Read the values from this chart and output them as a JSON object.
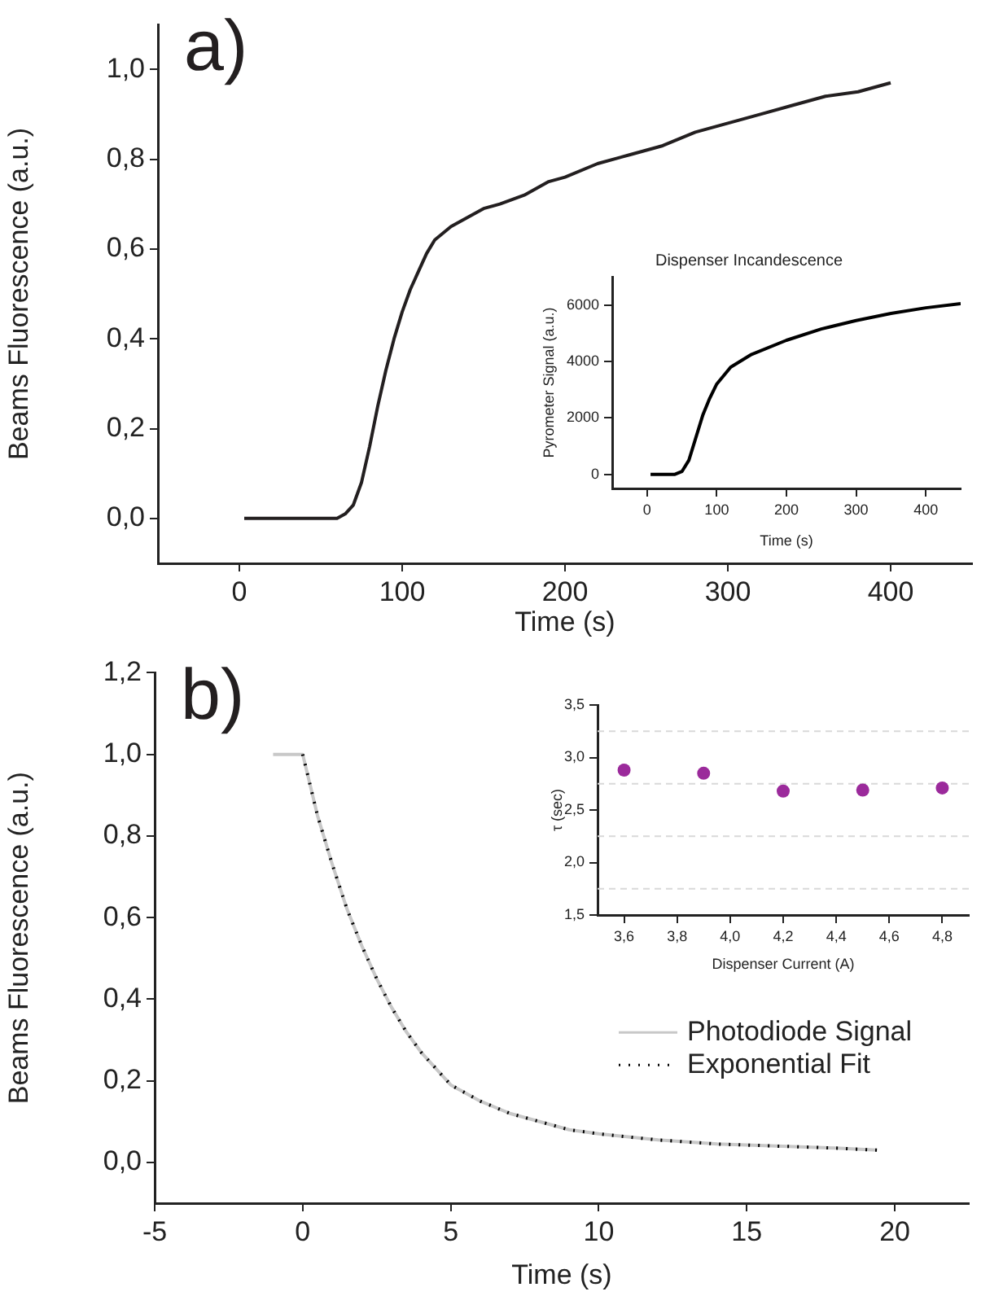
{
  "chart_data": [
    {
      "type": "line",
      "xlabel": "Time (s)",
      "ylabel": "Beams Fluorescence (a.u.)",
      "annotations": [
        "a)"
      ],
      "xlim": [
        -50,
        450
      ],
      "ylim": [
        -0.1,
        1.1
      ],
      "xticks": [
        0,
        100,
        200,
        300,
        400
      ],
      "yticks": [
        {
          "value": 0,
          "label": "0,0"
        },
        {
          "value": 0.2,
          "label": "0,2"
        },
        {
          "value": 0.4,
          "label": "0,4"
        },
        {
          "value": 0.6,
          "label": "0,6"
        },
        {
          "value": 0.8,
          "label": "0,8"
        },
        {
          "value": 1,
          "label": "1,0"
        }
      ],
      "grid": false,
      "legend": false,
      "marker": "none",
      "line_style": "solid",
      "series": [
        {
          "color": "#231f20",
          "x": [
            3,
            20,
            40,
            60,
            65,
            70,
            75,
            80,
            85,
            90,
            95,
            100,
            105,
            110,
            115,
            120,
            130,
            140,
            150,
            160,
            175,
            190,
            200,
            220,
            240,
            260,
            280,
            300,
            320,
            340,
            360,
            380,
            400
          ],
          "values": [
            0,
            0,
            0,
            0,
            0.01,
            0.03,
            0.08,
            0.16,
            0.25,
            0.33,
            0.4,
            0.46,
            0.51,
            0.55,
            0.59,
            0.62,
            0.65,
            0.67,
            0.69,
            0.7,
            0.72,
            0.75,
            0.76,
            0.79,
            0.81,
            0.83,
            0.86,
            0.88,
            0.9,
            0.92,
            0.94,
            0.95,
            0.97
          ]
        }
      ]
    },
    {
      "type": "line",
      "title": "Dispenser Incandescence",
      "xlabel": "Time (s)",
      "ylabel": "Pyrometer Signal (a.u.)",
      "xlim": [
        -50,
        450
      ],
      "ylim": [
        -500,
        7000
      ],
      "xticks": [
        0,
        100,
        200,
        300,
        400
      ],
      "yticks": [
        0,
        2000,
        4000,
        6000
      ],
      "grid": false,
      "legend": false,
      "marker": "none",
      "line_style": "solid",
      "series": [
        {
          "color": "#000000",
          "x": [
            5,
            20,
            40,
            50,
            60,
            70,
            80,
            90,
            100,
            120,
            150,
            200,
            250,
            300,
            350,
            400,
            450
          ],
          "values": [
            0,
            0,
            0,
            100,
            500,
            1300,
            2100,
            2700,
            3200,
            3800,
            4250,
            4750,
            5150,
            5450,
            5700,
            5900,
            6050
          ]
        }
      ]
    },
    {
      "type": "line",
      "xlabel": "Time (s)",
      "ylabel": "Beams Fluorescence (a.u.)",
      "annotations": [
        "b)"
      ],
      "xlim": [
        -5,
        22.5
      ],
      "ylim": [
        -0.1,
        1.2
      ],
      "xticks": [
        -5,
        0,
        5,
        10,
        15,
        20
      ],
      "yticks": [
        {
          "value": 0,
          "label": "0,0"
        },
        {
          "value": 0.2,
          "label": "0,2"
        },
        {
          "value": 0.4,
          "label": "0,4"
        },
        {
          "value": 0.6,
          "label": "0,6"
        },
        {
          "value": 0.8,
          "label": "0,8"
        },
        {
          "value": 1,
          "label": "1,0"
        },
        {
          "value": 1.2,
          "label": "1,2"
        }
      ],
      "grid": false,
      "legend": "right",
      "marker": "none",
      "series": [
        {
          "name": "Photodiode Signal",
          "color": "#c8c8c8",
          "line_style": "solid",
          "x": [
            -1,
            0,
            0.5,
            1,
            1.5,
            2,
            2.5,
            3,
            3.5,
            4,
            4.5,
            5,
            6,
            7,
            8,
            9,
            10,
            12,
            14,
            16,
            18,
            19.4
          ],
          "values": [
            1,
            1,
            0.85,
            0.73,
            0.62,
            0.53,
            0.45,
            0.38,
            0.32,
            0.27,
            0.23,
            0.19,
            0.15,
            0.12,
            0.1,
            0.08,
            0.07,
            0.055,
            0.045,
            0.04,
            0.035,
            0.03
          ]
        },
        {
          "name": "Exponential Fit",
          "color": "#000000",
          "line_style": "dotted",
          "x": [
            0,
            0.5,
            1,
            1.5,
            2,
            2.5,
            3,
            3.5,
            4,
            4.5,
            5,
            6,
            7,
            8,
            9,
            10,
            12,
            14,
            16,
            18,
            19.4
          ],
          "values": [
            1,
            0.85,
            0.73,
            0.62,
            0.53,
            0.45,
            0.38,
            0.32,
            0.27,
            0.23,
            0.19,
            0.15,
            0.12,
            0.1,
            0.08,
            0.07,
            0.055,
            0.045,
            0.04,
            0.035,
            0.03
          ]
        }
      ]
    },
    {
      "type": "scatter",
      "xlabel": "Dispenser Current (A)",
      "ylabel": "τ (sec)",
      "xlim": [
        3.5,
        4.9
      ],
      "ylim": [
        1.5,
        3.5
      ],
      "xticks": [
        {
          "value": 3.6,
          "label": "3,6"
        },
        {
          "value": 3.8,
          "label": "3,8"
        },
        {
          "value": 4,
          "label": "4,0"
        },
        {
          "value": 4.2,
          "label": "4,2"
        },
        {
          "value": 4.4,
          "label": "4,4"
        },
        {
          "value": 4.6,
          "label": "4,6"
        },
        {
          "value": 4.8,
          "label": "4,8"
        }
      ],
      "yticks": [
        {
          "value": 1.5,
          "label": "1,5"
        },
        {
          "value": 2,
          "label": "2,0"
        },
        {
          "value": 2.5,
          "label": "2,5"
        },
        {
          "value": 3,
          "label": "3,0"
        },
        {
          "value": 3.5,
          "label": "3,5"
        }
      ],
      "grid": false,
      "legend": false,
      "marker": "circle",
      "ref_lines": [
        {
          "axis": "y",
          "value": 1.75,
          "color": "#d9d9d9",
          "line_style": "dashed"
        },
        {
          "axis": "y",
          "value": 2.25,
          "color": "#d9d9d9",
          "line_style": "dashed"
        },
        {
          "axis": "y",
          "value": 2.75,
          "color": "#d9d9d9",
          "line_style": "dashed"
        },
        {
          "axis": "y",
          "value": 3.25,
          "color": "#d9d9d9",
          "line_style": "dashed"
        }
      ],
      "series": [
        {
          "color": "#9b2a9b",
          "x": [
            3.6,
            3.9,
            4.2,
            4.5,
            4.8
          ],
          "values": [
            2.88,
            2.85,
            2.68,
            2.69,
            2.71
          ]
        }
      ]
    }
  ]
}
